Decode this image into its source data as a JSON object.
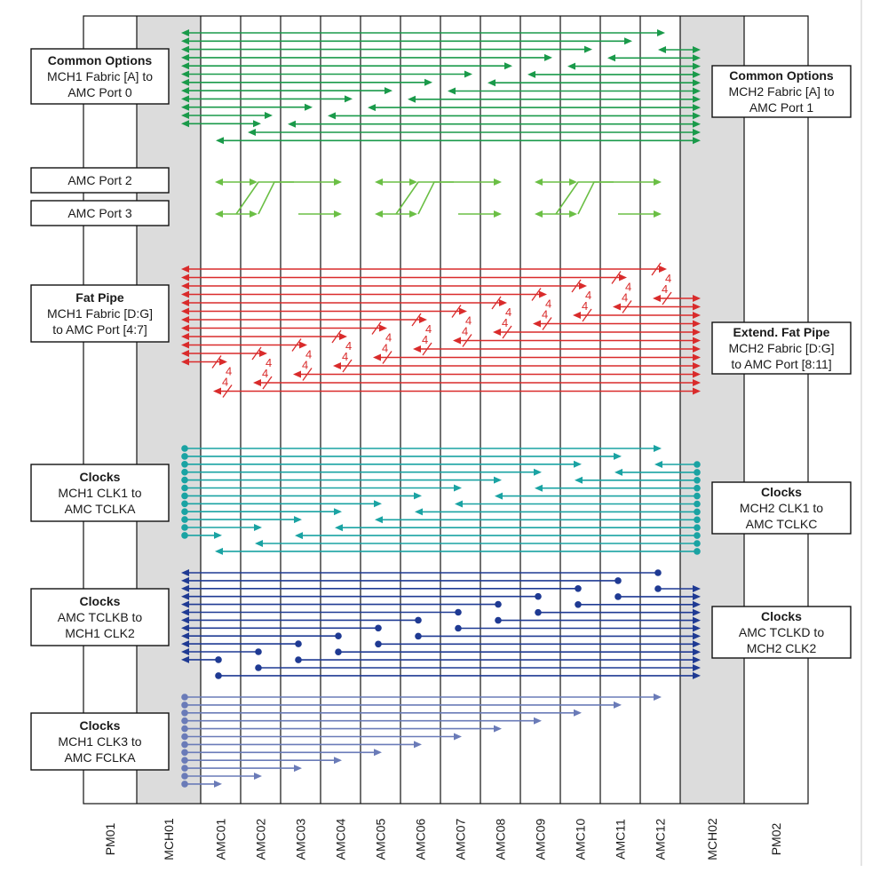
{
  "slots": [
    "PM01",
    "MCH01",
    "AMC01",
    "AMC02",
    "AMC03",
    "AMC04",
    "AMC05",
    "AMC06",
    "AMC07",
    "AMC08",
    "AMC09",
    "AMC10",
    "AMC11",
    "AMC12",
    "MCH02",
    "PM02"
  ],
  "bus_width_label": "4",
  "colors": {
    "common_options": "#1a9a4a",
    "amc_ports_2_3": "#6bbf45",
    "fat_pipe": "#d92b2b",
    "clocks_tclka": "#1aa3a3",
    "clocks_tclkb": "#1f3a93",
    "clocks_fclka": "#6a7bb8",
    "mch_shade": "#dcdcdc"
  },
  "left_boxes": [
    {
      "id": "common-options-mch1",
      "title": "Common Options",
      "lines": [
        "MCH1 Fabric [A] to",
        "AMC Port 0"
      ]
    },
    {
      "id": "amc-port-2",
      "title": "",
      "lines": [
        "AMC Port 2"
      ]
    },
    {
      "id": "amc-port-3",
      "title": "",
      "lines": [
        "AMC Port 3"
      ]
    },
    {
      "id": "fat-pipe",
      "title": "Fat Pipe",
      "lines": [
        "MCH1 Fabric [D:G]",
        "to AMC Port [4:7]"
      ]
    },
    {
      "id": "clocks-mch1-clk1",
      "title": "Clocks",
      "lines": [
        "MCH1 CLK1 to",
        "AMC TCLKA"
      ]
    },
    {
      "id": "clocks-tclkb",
      "title": "Clocks",
      "lines": [
        "AMC TCLKB to",
        "MCH1 CLK2"
      ]
    },
    {
      "id": "clocks-mch1-clk3",
      "title": "Clocks",
      "lines": [
        "MCH1 CLK3 to",
        "AMC FCLKA"
      ]
    }
  ],
  "right_boxes": [
    {
      "id": "common-options-mch2",
      "title": "Common Options",
      "lines": [
        "MCH2 Fabric [A] to",
        "AMC Port 1"
      ]
    },
    {
      "id": "extend-fat-pipe",
      "title": "Extend. Fat Pipe",
      "lines": [
        "MCH2 Fabric [D:G]",
        "to AMC Port [8:11]"
      ]
    },
    {
      "id": "clocks-mch2-clk1",
      "title": "Clocks",
      "lines": [
        "MCH2 CLK1 to",
        "AMC TCLKC"
      ]
    },
    {
      "id": "clocks-tclkd",
      "title": "Clocks",
      "lines": [
        "AMC TCLKD to",
        "MCH2 CLK2"
      ]
    }
  ]
}
